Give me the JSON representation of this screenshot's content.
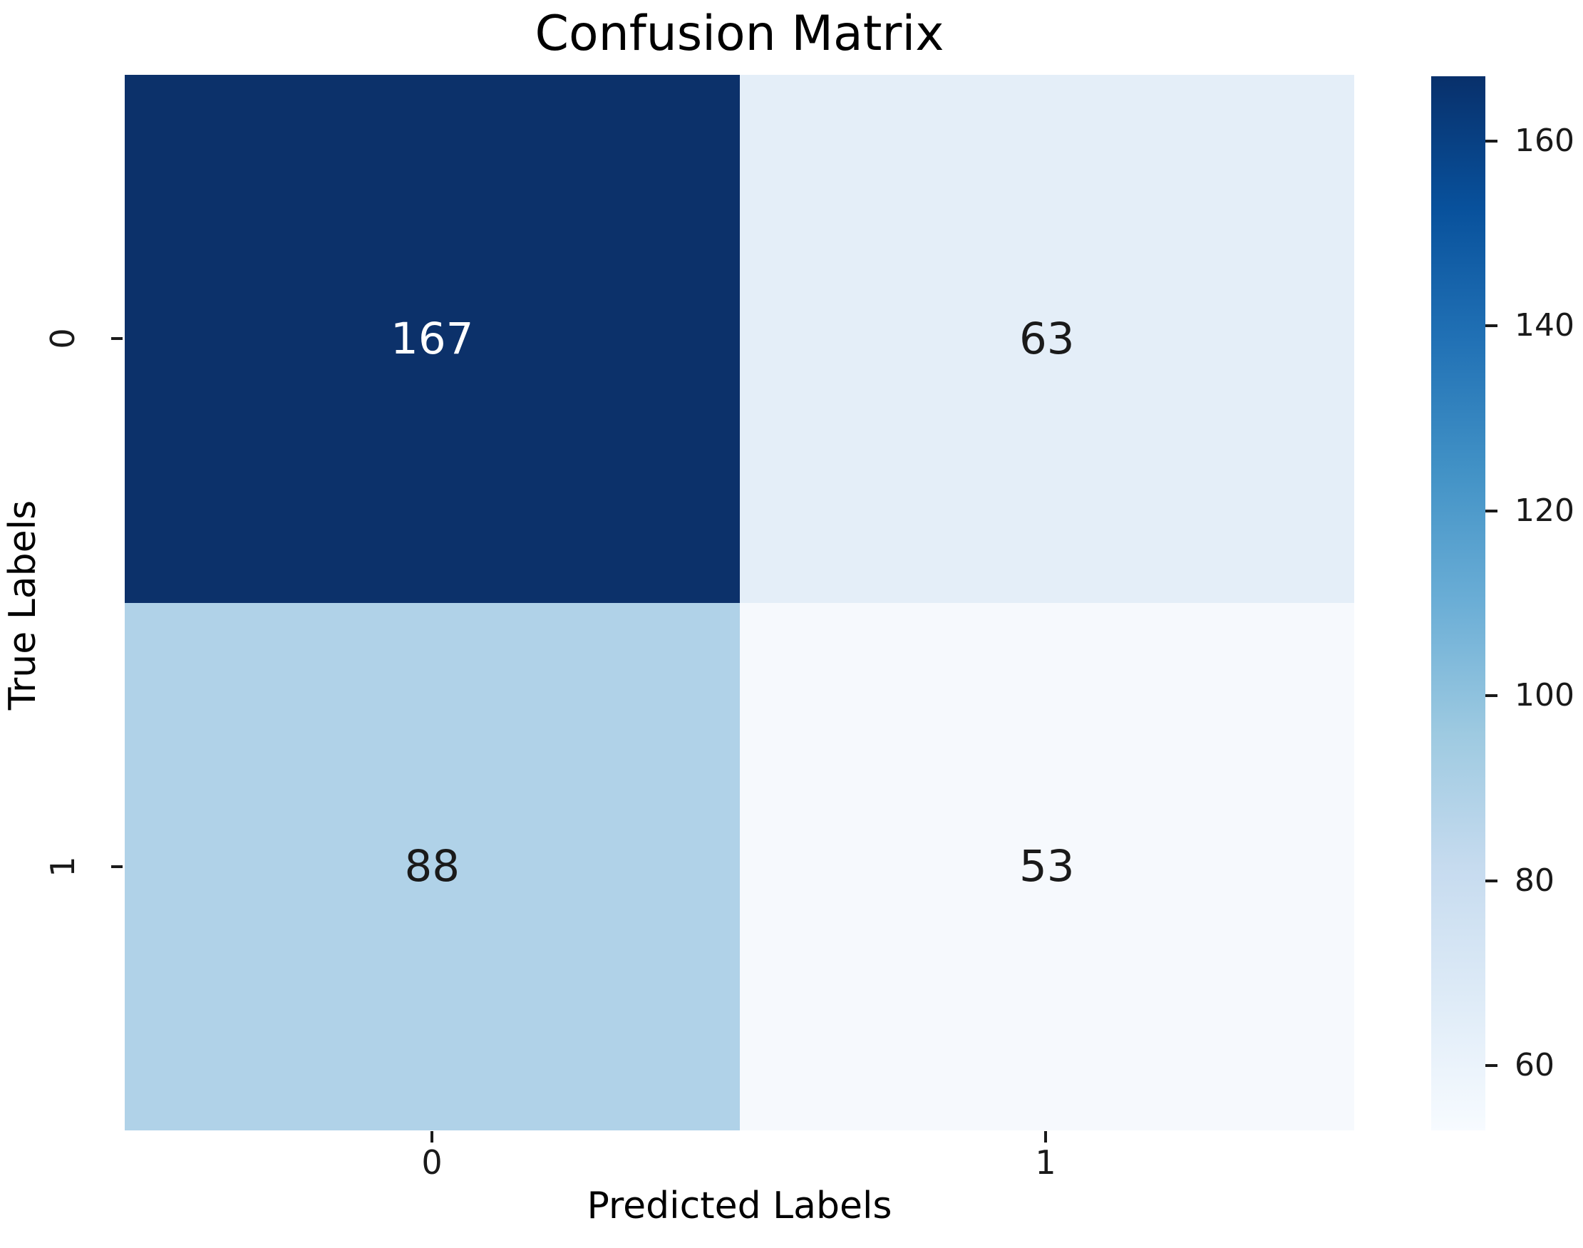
{
  "chart_data": {
    "type": "heatmap",
    "title": "Confusion Matrix",
    "xlabel": "Predicted Labels",
    "ylabel": "True Labels",
    "x_ticklabels": [
      "0",
      "1"
    ],
    "y_ticklabels": [
      "0",
      "1"
    ],
    "matrix": [
      [
        167,
        63
      ],
      [
        88,
        53
      ]
    ],
    "vmin": 53,
    "vmax": 167,
    "colormap": "Blues",
    "colormap_stops": [
      "#f7fbff",
      "#deebf7",
      "#c6dbef",
      "#9ecae1",
      "#6baed6",
      "#4292c6",
      "#2171b5",
      "#08519c",
      "#08306b"
    ],
    "colorbar_ticks": [
      60,
      80,
      100,
      120,
      140,
      160
    ],
    "colorbar_position": "right",
    "grid": false,
    "cell_colors": [
      [
        "#0c316a",
        "#e4eef8"
      ],
      [
        "#b0d2e8",
        "#f6f9fd"
      ]
    ],
    "cell_text_colors": [
      [
        "#ffffff",
        "#1a1a1a"
      ],
      [
        "#1a1a1a",
        "#1a1a1a"
      ]
    ]
  }
}
